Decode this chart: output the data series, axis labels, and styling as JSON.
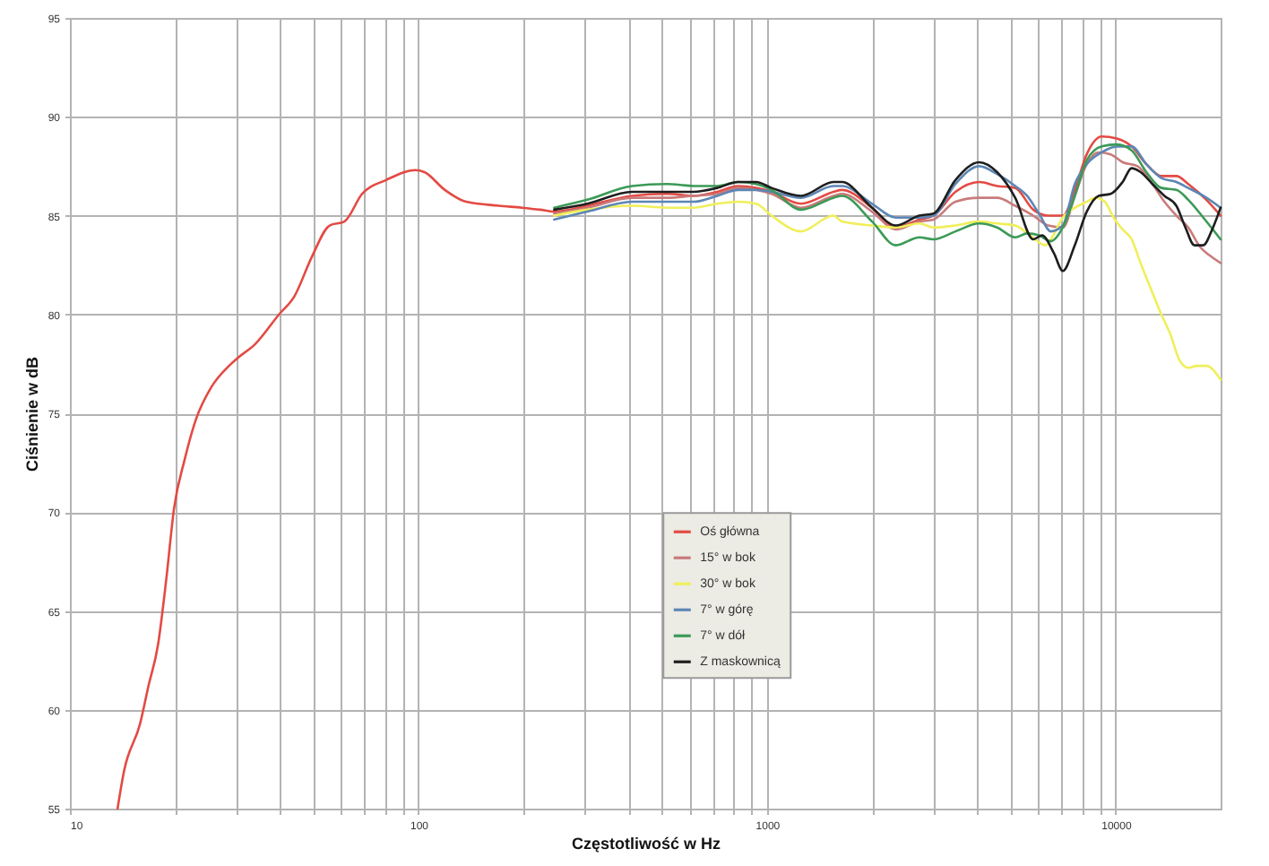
{
  "chart_data": {
    "type": "line",
    "xlabel": "Częstotliwość w Hz",
    "ylabel": "Ciśnienie w dB",
    "log": "x",
    "grid": true,
    "legend": "center",
    "xlim": [
      10,
      20000
    ],
    "ylim": [
      55,
      95
    ],
    "xticks": [
      10,
      {
        "value": 20,
        "label": null
      },
      {
        "value": 30,
        "label": null
      },
      {
        "value": 40,
        "label": null
      },
      {
        "value": 50,
        "label": null
      },
      {
        "value": 60,
        "label": null
      },
      {
        "value": 70,
        "label": null
      },
      {
        "value": 80,
        "label": null
      },
      {
        "value": 90,
        "label": null
      },
      100,
      {
        "value": 200,
        "label": null
      },
      {
        "value": 300,
        "label": null
      },
      {
        "value": 400,
        "label": null
      },
      {
        "value": 500,
        "label": null
      },
      {
        "value": 600,
        "label": null
      },
      {
        "value": 700,
        "label": null
      },
      {
        "value": 800,
        "label": null
      },
      {
        "value": 900,
        "label": null
      },
      1000,
      {
        "value": 2000,
        "label": null
      },
      {
        "value": 3000,
        "label": null
      },
      {
        "value": 4000,
        "label": null
      },
      {
        "value": 5000,
        "label": null
      },
      {
        "value": 6000,
        "label": null
      },
      {
        "value": 7000,
        "label": null
      },
      {
        "value": 8000,
        "label": null
      },
      {
        "value": 9000,
        "label": null
      },
      10000
    ],
    "yticks": [
      55,
      60,
      65,
      70,
      75,
      80,
      85,
      90,
      95
    ],
    "series": [
      {
        "name": "Oś główna",
        "color": "#e34a43",
        "x": [
          13.7,
          14.3,
          15.9,
          16.8,
          17.9,
          18.9,
          19.9,
          21.3,
          23,
          25.4,
          28.6,
          30.3,
          34,
          39.8,
          44,
          49.4,
          55.6,
          61.3,
          68.9,
          80.7,
          98,
          104,
          119,
          137,
          170,
          198,
          223,
          245,
          305,
          410,
          515,
          615,
          720,
          825,
          930,
          1030,
          1250,
          1550,
          1640,
          2000,
          2340,
          2735,
          3000,
          3470,
          4060,
          4570,
          5150,
          5800,
          6400,
          7060,
          7635,
          8260,
          9120,
          10070,
          11110,
          12250,
          13520,
          14930,
          16150,
          18200,
          20000
        ],
        "values": [
          55,
          56.9,
          59.3,
          61.2,
          63.3,
          66.6,
          70.2,
          72.6,
          74.7,
          76.3,
          77.4,
          77.8,
          78.5,
          80.0,
          80.9,
          82.9,
          84.5,
          84.7,
          86.1,
          86.8,
          87.3,
          87.2,
          86.3,
          85.7,
          85.5,
          85.4,
          85.3,
          85.2,
          85.5,
          86.0,
          86.1,
          86.0,
          86.2,
          86.5,
          86.4,
          86.2,
          85.6,
          86.2,
          86.3,
          85.4,
          84.4,
          84.8,
          85.0,
          86.2,
          86.7,
          86.5,
          86.4,
          85.3,
          85.0,
          85.0,
          86.3,
          88.1,
          89.0,
          88.9,
          88.5,
          87.6,
          87.0,
          87.0,
          86.6,
          85.8,
          85.0
        ]
      },
      {
        "name": "15° w bok",
        "color": "#c97b7b",
        "x": [
          245,
          305,
          410,
          515,
          615,
          720,
          825,
          930,
          1030,
          1250,
          1550,
          1640,
          2000,
          2340,
          2735,
          3000,
          3470,
          4060,
          4570,
          5150,
          5800,
          6400,
          7060,
          7635,
          8260,
          8935,
          9675,
          10470,
          11550,
          12750,
          13800,
          14930,
          16150,
          17490,
          18550,
          20000
        ],
        "values": [
          85.1,
          85.4,
          85.9,
          85.9,
          86.0,
          86.1,
          86.4,
          86.3,
          86.1,
          85.4,
          86.0,
          86.1,
          85.2,
          84.3,
          84.7,
          84.8,
          85.7,
          85.9,
          85.9,
          85.5,
          85.0,
          84.5,
          84.4,
          86.0,
          87.6,
          88.2,
          88.1,
          87.7,
          87.5,
          86.6,
          85.7,
          85.0,
          84.4,
          83.4,
          83.0,
          82.6
        ]
      },
      {
        "name": "30° w bok",
        "color": "#f0ef5a",
        "x": [
          245,
          305,
          410,
          515,
          615,
          720,
          825,
          930,
          1030,
          1250,
          1550,
          1640,
          2000,
          2340,
          2735,
          3000,
          3470,
          4060,
          4570,
          5150,
          5680,
          6300,
          6520,
          7050,
          7635,
          8260,
          8770,
          9305,
          9865,
          10470,
          11110,
          11790,
          12750,
          13520,
          14350,
          15230,
          16150,
          17140,
          18200,
          20000
        ],
        "values": [
          85.0,
          85.3,
          85.5,
          85.4,
          85.4,
          85.6,
          85.7,
          85.6,
          85.0,
          84.2,
          85.0,
          84.7,
          84.5,
          84.4,
          84.6,
          84.4,
          84.5,
          84.7,
          84.6,
          84.5,
          84.0,
          83.5,
          83.8,
          84.9,
          85.4,
          85.7,
          85.9,
          85.7,
          84.9,
          84.3,
          83.8,
          82.6,
          81.1,
          80.0,
          79.0,
          77.7,
          77.3,
          77.4,
          77.4,
          76.7
        ]
      },
      {
        "name": "7° w górę",
        "color": "#5c86b5",
        "x": [
          245,
          305,
          410,
          515,
          615,
          720,
          825,
          930,
          1030,
          1250,
          1550,
          1640,
          2000,
          2340,
          2735,
          3000,
          3470,
          4060,
          4570,
          5150,
          5570,
          6026,
          6520,
          7050,
          7635,
          8260,
          9120,
          10070,
          11110,
          12250,
          13520,
          14930,
          16150,
          17840,
          20000
        ],
        "values": [
          84.8,
          85.2,
          85.7,
          85.7,
          85.7,
          86.0,
          86.3,
          86.3,
          86.2,
          85.9,
          86.5,
          86.5,
          85.6,
          84.9,
          84.9,
          85.0,
          86.6,
          87.5,
          87.1,
          86.5,
          86.0,
          85.1,
          84.2,
          84.5,
          86.6,
          87.6,
          88.2,
          88.5,
          88.5,
          87.6,
          86.9,
          86.7,
          86.4,
          86.0,
          85.4
        ]
      },
      {
        "name": "7° w dół",
        "color": "#3b9a57",
        "x": [
          245,
          305,
          410,
          515,
          615,
          720,
          825,
          930,
          1030,
          1250,
          1550,
          1640,
          2000,
          2340,
          2735,
          3000,
          3470,
          4060,
          4570,
          5150,
          5570,
          6026,
          6520,
          7050,
          7635,
          8260,
          9120,
          10070,
          11110,
          12250,
          13520,
          14930,
          16150,
          17840,
          20000
        ],
        "values": [
          85.4,
          85.8,
          86.5,
          86.6,
          86.5,
          86.5,
          86.7,
          86.6,
          86.3,
          85.3,
          85.9,
          86.0,
          84.7,
          83.5,
          83.9,
          83.8,
          84.2,
          84.6,
          84.4,
          83.9,
          84.1,
          84.0,
          83.7,
          84.4,
          86.0,
          87.8,
          88.5,
          88.6,
          88.3,
          87.2,
          86.4,
          86.3,
          85.8,
          84.9,
          83.8
        ]
      },
      {
        "name": "Z maskownicą",
        "color": "#1e1e1e",
        "x": [
          245,
          305,
          410,
          515,
          615,
          720,
          825,
          930,
          1030,
          1250,
          1550,
          1640,
          2000,
          2340,
          2735,
          3000,
          3470,
          4060,
          4570,
          5150,
          5800,
          6150,
          6650,
          7050,
          7635,
          8260,
          8935,
          9675,
          10470,
          11110,
          11790,
          12750,
          13800,
          14930,
          15850,
          16820,
          17840,
          18920,
          20000
        ],
        "values": [
          85.3,
          85.6,
          86.2,
          86.2,
          86.2,
          86.4,
          86.7,
          86.7,
          86.4,
          86.0,
          86.7,
          86.7,
          85.4,
          84.5,
          85.0,
          85.1,
          86.8,
          87.7,
          87.2,
          85.9,
          83.8,
          84.0,
          83.1,
          82.2,
          83.5,
          85.2,
          86.0,
          86.1,
          86.7,
          87.4,
          87.2,
          86.6,
          86.0,
          85.5,
          84.4,
          83.5,
          83.5,
          84.3,
          85.4
        ]
      }
    ]
  }
}
